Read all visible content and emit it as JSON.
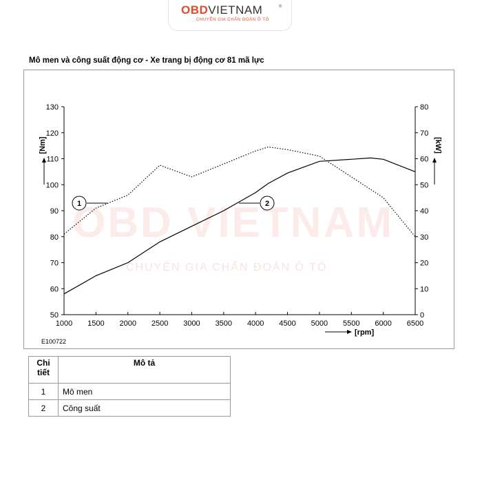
{
  "header": {
    "logo_obd": "OBD",
    "logo_viet": "VIETNAM",
    "logo_reg": "®",
    "logo_tagline": "CHUYÊN GIA CHẨN ĐOÁN Ô TÔ"
  },
  "watermark": {
    "main": "OBD VIETNAM",
    "tagline": "CHUYÊN GIA CHẨN ĐOÁN Ô TÔ"
  },
  "figure": {
    "title": "Mô men và công suất động cơ - Xe trang bị động cơ 81 mã lực",
    "code": "E100722"
  },
  "chart_data": {
    "type": "line",
    "title": "Mô men và công suất động cơ - Xe trang bị động cơ 81 mã lực",
    "xlabel": "[rpm]",
    "ylabel_left": "[Nm]",
    "ylabel_right": "[kW]",
    "xlim": [
      1000,
      6500
    ],
    "ylim_left": [
      50,
      130
    ],
    "ylim_right": [
      0,
      80
    ],
    "x_ticks": [
      1000,
      1500,
      2000,
      2500,
      3000,
      3500,
      4000,
      4500,
      5000,
      5500,
      6000,
      6500
    ],
    "y_left_ticks": [
      50,
      60,
      70,
      80,
      90,
      100,
      110,
      120,
      130
    ],
    "y_right_ticks": [
      0,
      10,
      20,
      30,
      40,
      50,
      60,
      70,
      80
    ],
    "grid": false,
    "series": [
      {
        "name": "1",
        "axis": "left",
        "style": "dotted",
        "points": [
          [
            1000,
            81
          ],
          [
            1500,
            91
          ],
          [
            2000,
            96
          ],
          [
            2500,
            107.5
          ],
          [
            3000,
            103
          ],
          [
            3500,
            108
          ],
          [
            4000,
            113
          ],
          [
            4200,
            114.5
          ],
          [
            4500,
            113.5
          ],
          [
            5000,
            111
          ],
          [
            5500,
            103
          ],
          [
            6000,
            95
          ],
          [
            6500,
            80
          ]
        ]
      },
      {
        "name": "2",
        "axis": "right",
        "style": "solid",
        "points": [
          [
            1000,
            8
          ],
          [
            1500,
            15
          ],
          [
            2000,
            20
          ],
          [
            2500,
            28
          ],
          [
            3000,
            34
          ],
          [
            3500,
            40
          ],
          [
            4000,
            47
          ],
          [
            4200,
            50.5
          ],
          [
            4500,
            54.5
          ],
          [
            5000,
            59
          ],
          [
            5500,
            59.8
          ],
          [
            5800,
            60.3
          ],
          [
            6000,
            59.8
          ],
          [
            6500,
            55
          ]
        ]
      }
    ],
    "callouts": [
      {
        "label": "1",
        "series": "1"
      },
      {
        "label": "2",
        "series": "2"
      }
    ],
    "colors": {
      "series_1": "#000000",
      "series_2": "#000000"
    }
  },
  "legend_table": {
    "headers": [
      "Chi tiết",
      "Mô tả"
    ],
    "rows": [
      {
        "id": "1",
        "desc": "Mô men"
      },
      {
        "id": "2",
        "desc": "Công suất"
      }
    ]
  }
}
